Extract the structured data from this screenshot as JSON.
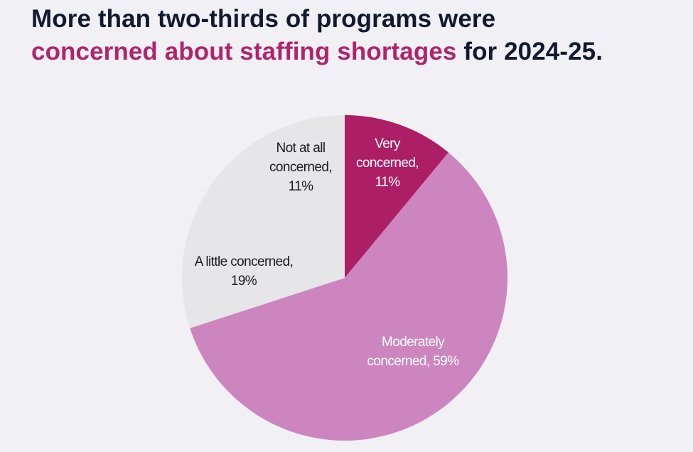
{
  "headline": {
    "line1": "More than two-thirds of programs were",
    "line2_highlight": "concerned about staffing shortages",
    "line2_rest": " for 2024-25."
  },
  "colors": {
    "background": "#f0f0f5",
    "headline_text": "#13192e",
    "headline_accent": "#b1246c"
  },
  "chart_data": {
    "type": "pie",
    "title": "",
    "slices": [
      {
        "label": "Very concerned",
        "value": 11,
        "label_lines": [
          "Very",
          "concerned,",
          "11%"
        ],
        "color": "#ac1f67",
        "label_color": "#ffffff"
      },
      {
        "label": "Moderately concerned",
        "value": 59,
        "label_lines": [
          "Moderately",
          "concerned, 59%"
        ],
        "color": "#cd85bf",
        "label_color": "#ffffff"
      },
      {
        "label": "A little concerned",
        "value": 19,
        "label_lines": [
          "A little concerned,",
          "19%"
        ],
        "color": "#e6e6e8",
        "label_color": "#1b1b1b"
      },
      {
        "label": "Not at all concerned",
        "value": 11,
        "label_lines": [
          "Not at all",
          "concerned,",
          "11%"
        ],
        "color": "#e6e6e8",
        "label_color": "#1b1b1b"
      }
    ],
    "start": "12 o'clock",
    "direction": "clockwise"
  }
}
